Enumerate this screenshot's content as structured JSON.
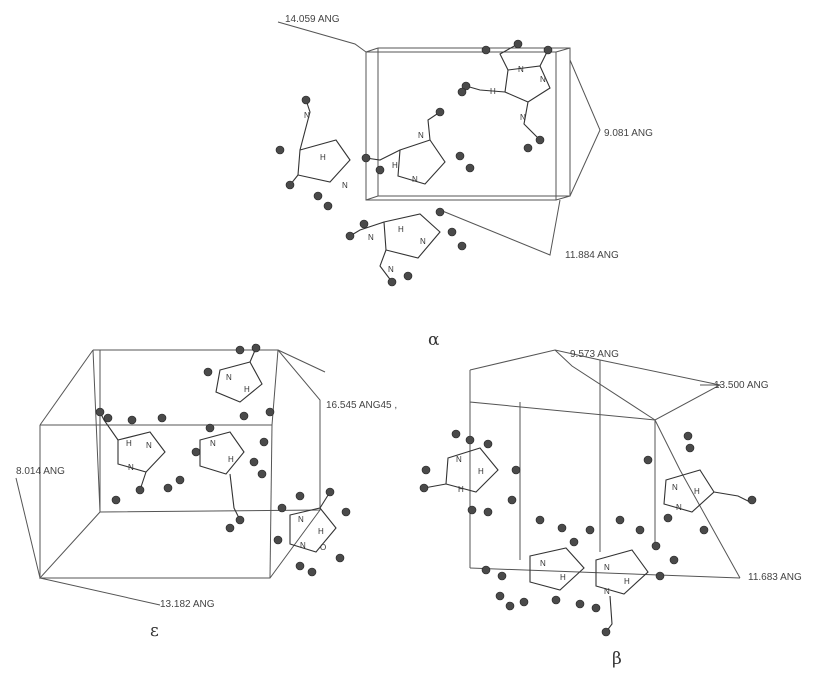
{
  "alpha": {
    "symbol": "α",
    "dims": [
      "14.059 ANG",
      "9.081 ANG",
      "11.884 ANG"
    ]
  },
  "epsilon": {
    "symbol": "ε",
    "dims": [
      "16.545 ANG45 ,",
      "8.014 ANG",
      "13.182 ANG"
    ]
  },
  "beta": {
    "symbol": "β",
    "dims": [
      "9.573 ANG",
      "13.500 ANG",
      "11.683 ANG"
    ]
  },
  "atom_labels": [
    "H",
    "N",
    "O"
  ]
}
